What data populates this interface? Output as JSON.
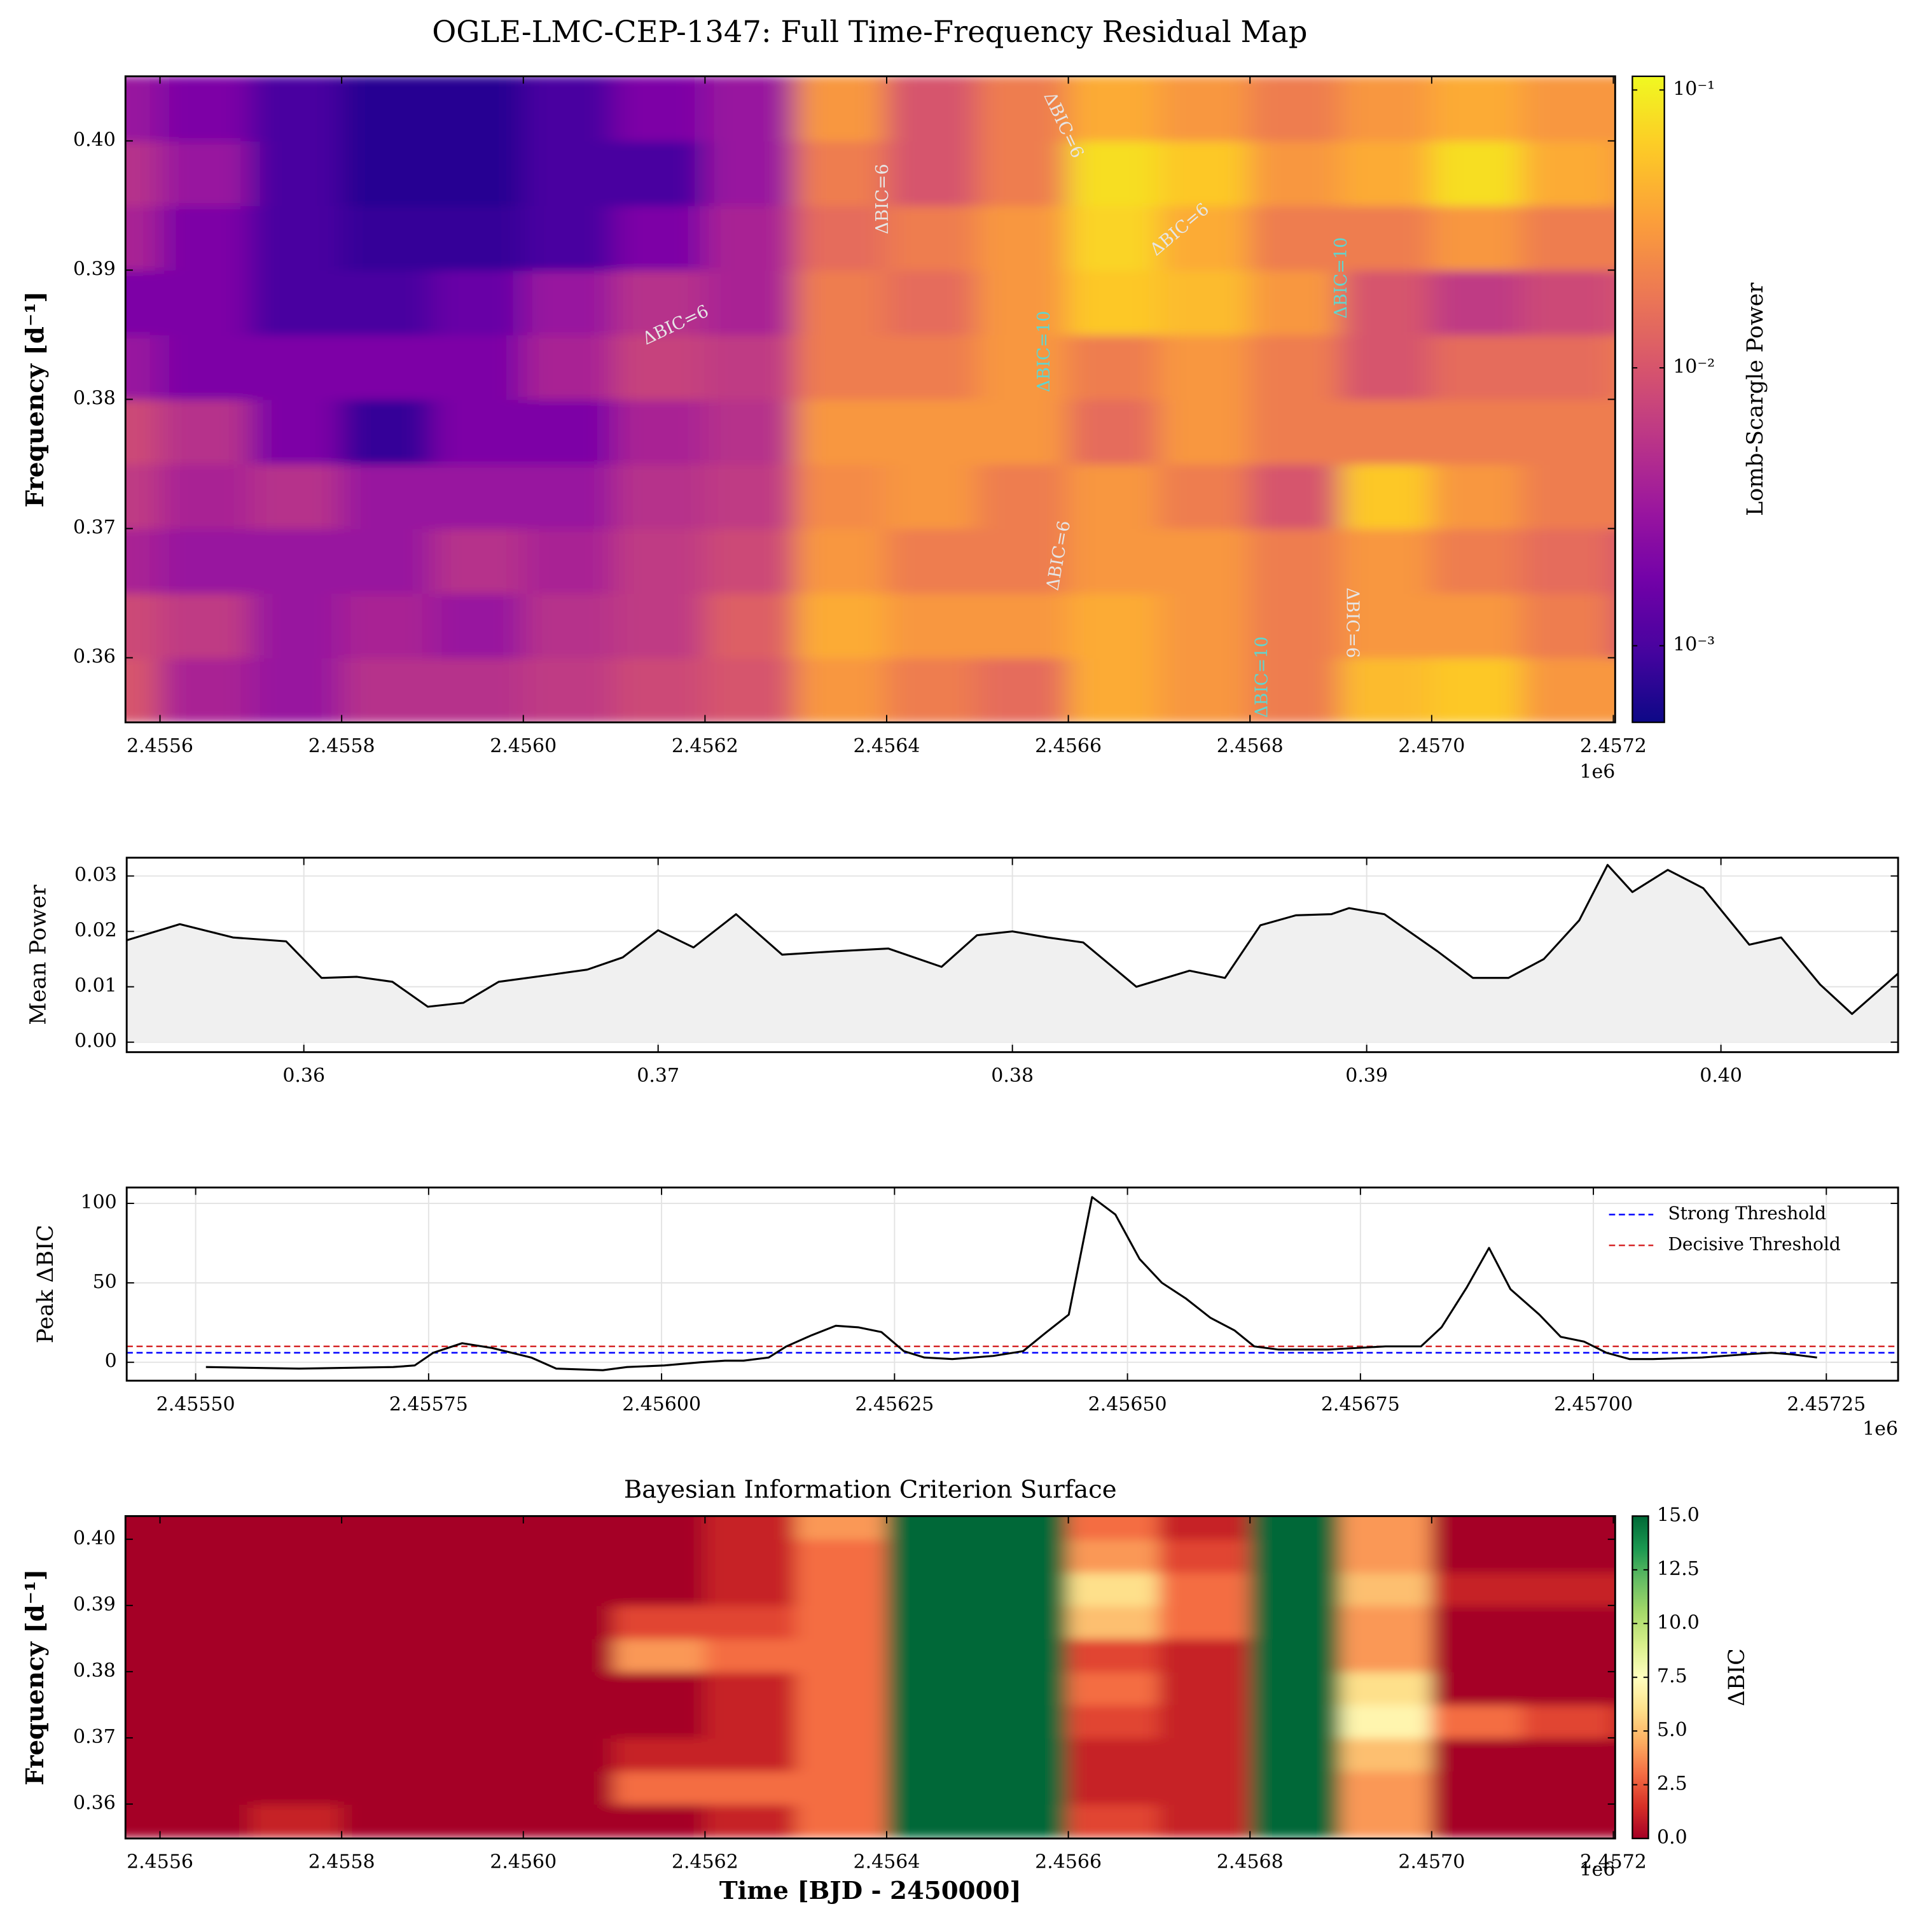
{
  "title": "OGLE-LMC-CEP-1347: Full Time-Frequency Residual Map",
  "chart_data": [
    {
      "type": "heatmap",
      "ylabel": "Frequency [d⁻¹]",
      "x_offset_label": "1e6",
      "x": [
        2455550,
        2455650,
        2455750,
        2455850,
        2455950,
        2456050,
        2456150,
        2456250,
        2456350,
        2456450,
        2456550,
        2456650,
        2456750,
        2456850,
        2456950,
        2457050,
        2457150,
        2457250
      ],
      "y": [
        0.3575,
        0.3625,
        0.3675,
        0.3725,
        0.3775,
        0.3825,
        0.3875,
        0.3925,
        0.3975,
        0.4025
      ],
      "z": [
        [
          0.01,
          0.008,
          0.004,
          0.006,
          0.008,
          0.003,
          0.002,
          0.004,
          0.005,
          0.003
        ],
        [
          0.004,
          0.006,
          0.003,
          0.004,
          0.005,
          0.002,
          0.002,
          0.002,
          0.003,
          0.002
        ],
        [
          0.003,
          0.003,
          0.003,
          0.005,
          0.002,
          0.002,
          0.001,
          0.001,
          0.001,
          0.001
        ],
        [
          0.005,
          0.004,
          0.003,
          0.003,
          0.0008,
          0.002,
          0.001,
          0.0008,
          0.0007,
          0.0007
        ],
        [
          0.005,
          0.003,
          0.005,
          0.003,
          0.002,
          0.002,
          0.0015,
          0.0008,
          0.0007,
          0.0007
        ],
        [
          0.006,
          0.005,
          0.004,
          0.003,
          0.002,
          0.004,
          0.003,
          0.001,
          0.001,
          0.001
        ],
        [
          0.008,
          0.006,
          0.006,
          0.005,
          0.004,
          0.007,
          0.005,
          0.002,
          0.001,
          0.002
        ],
        [
          0.01,
          0.012,
          0.008,
          0.006,
          0.005,
          0.006,
          0.004,
          0.004,
          0.003,
          0.003
        ],
        [
          0.03,
          0.04,
          0.03,
          0.025,
          0.03,
          0.02,
          0.02,
          0.015,
          0.02,
          0.03
        ],
        [
          0.02,
          0.03,
          0.02,
          0.03,
          0.03,
          0.02,
          0.015,
          0.02,
          0.01,
          0.01
        ],
        [
          0.015,
          0.03,
          0.02,
          0.02,
          0.03,
          0.03,
          0.03,
          0.03,
          0.02,
          0.02
        ],
        [
          0.04,
          0.04,
          0.03,
          0.03,
          0.015,
          0.02,
          0.06,
          0.07,
          0.08,
          0.04
        ],
        [
          0.03,
          0.03,
          0.03,
          0.02,
          0.03,
          0.03,
          0.05,
          0.04,
          0.06,
          0.03
        ],
        [
          0.02,
          0.02,
          0.02,
          0.01,
          0.02,
          0.02,
          0.03,
          0.02,
          0.03,
          0.02
        ],
        [
          0.05,
          0.03,
          0.03,
          0.06,
          0.02,
          0.01,
          0.01,
          0.02,
          0.04,
          0.03
        ],
        [
          0.06,
          0.03,
          0.02,
          0.03,
          0.02,
          0.015,
          0.006,
          0.03,
          0.08,
          0.04
        ],
        [
          0.03,
          0.02,
          0.015,
          0.02,
          0.02,
          0.015,
          0.008,
          0.02,
          0.04,
          0.03
        ],
        [
          0.03,
          0.01,
          0.01,
          0.02,
          0.02,
          0.02,
          0.01,
          0.02,
          0.03,
          0.03
        ]
      ],
      "xlim": [
        2455562,
        2457202
      ],
      "ylim": [
        0.355,
        0.405
      ],
      "xticks": [
        {
          "value": 2455600,
          "label": "2.4556"
        },
        {
          "value": 2455800,
          "label": "2.4558"
        },
        {
          "value": 2456000,
          "label": "2.4560"
        },
        {
          "value": 2456200,
          "label": "2.4562"
        },
        {
          "value": 2456400,
          "label": "2.4564"
        },
        {
          "value": 2456600,
          "label": "2.4566"
        },
        {
          "value": 2456800,
          "label": "2.4568"
        },
        {
          "value": 2457000,
          "label": "2.4570"
        },
        {
          "value": 2457200,
          "label": "2.4572"
        }
      ],
      "yticks": [
        0.36,
        0.37,
        0.38,
        0.39,
        {
          "value": 0.4,
          "label": "0.40"
        }
      ],
      "colorbar": {
        "label": "Lomb-Scargle Power",
        "colormap": "plasma",
        "log": true,
        "lim": [
          0.00053,
          0.112
        ],
        "ticks": [
          {
            "value": 0.001,
            "label": "10⁻³"
          },
          {
            "value": 0.01,
            "label": "10⁻²"
          },
          {
            "value": 0.1,
            "label": "10⁻¹"
          }
        ]
      },
      "annotations": [
        {
          "text": "ΔBIC=6",
          "x": 2456168,
          "y": 0.3857,
          "color": "#e6e6e6"
        },
        {
          "text": "ΔBIC=6",
          "x": 2456396,
          "y": 0.3955,
          "color": "#e6e6e6"
        },
        {
          "text": "ΔBIC=6",
          "x": 2456594,
          "y": 0.4012,
          "color": "#e6e6e6"
        },
        {
          "text": "ΔBIC=6",
          "x": 2456723,
          "y": 0.3931,
          "color": "#e6e6e6"
        },
        {
          "text": "ΔBIC=10",
          "x": 2456574,
          "y": 0.3837,
          "color": "#5fd6d0"
        },
        {
          "text": "ΔBIC=6",
          "x": 2456590,
          "y": 0.3679,
          "color": "#e6e6e6"
        },
        {
          "text": "ΔBIC=10",
          "x": 2456901,
          "y": 0.3894,
          "color": "#5fd6d0"
        },
        {
          "text": "ΔBIC=6",
          "x": 2456912,
          "y": 0.3627,
          "color": "#e6e6e6"
        },
        {
          "text": "ΔBIC=10",
          "x": 2456814,
          "y": 0.3585,
          "color": "#5fd6d0"
        }
      ]
    },
    {
      "type": "line",
      "ylabel": "Mean Power",
      "color": "#000000",
      "fill": true,
      "fill_color": "#f0f0f0",
      "grid": true,
      "x": [
        0.355,
        0.3565,
        0.358,
        0.3595,
        0.3605,
        0.3615,
        0.3625,
        0.3635,
        0.3645,
        0.3655,
        0.367,
        0.368,
        0.369,
        0.37,
        0.371,
        0.3722,
        0.3735,
        0.375,
        0.3765,
        0.378,
        0.379,
        0.38,
        0.381,
        0.382,
        0.3835,
        0.385,
        0.386,
        0.387,
        0.388,
        0.389,
        0.3895,
        0.3905,
        0.392,
        0.393,
        0.394,
        0.395,
        0.396,
        0.3968,
        0.3975,
        0.3985,
        0.3995,
        0.4008,
        0.4017,
        0.4028,
        0.4037,
        0.405
      ],
      "values": [
        0.0184,
        0.0213,
        0.0189,
        0.0182,
        0.0116,
        0.0118,
        0.0109,
        0.0064,
        0.0071,
        0.0109,
        0.0122,
        0.0131,
        0.0153,
        0.0202,
        0.0171,
        0.0231,
        0.0158,
        0.0164,
        0.0169,
        0.0136,
        0.0193,
        0.02,
        0.0189,
        0.018,
        0.01,
        0.0129,
        0.0116,
        0.0211,
        0.0229,
        0.0231,
        0.0242,
        0.0231,
        0.0164,
        0.0116,
        0.0116,
        0.015,
        0.022,
        0.032,
        0.0271,
        0.0311,
        0.0278,
        0.0176,
        0.0189,
        0.0104,
        0.0051,
        0.0124
      ],
      "xlim": [
        0.355,
        0.405
      ],
      "ylim": [
        -0.0018,
        0.0333
      ],
      "xticks": [
        0.36,
        0.37,
        0.38,
        0.39,
        {
          "value": 0.4,
          "label": "0.40"
        }
      ],
      "yticks": [
        {
          "value": 0,
          "label": "0.00"
        },
        0.01,
        0.02,
        0.03
      ]
    },
    {
      "type": "line",
      "ylabel": "Peak ΔBIC",
      "x_offset_label": "1e6",
      "color": "#000000",
      "grid": true,
      "legend": "upper right",
      "x": [
        2455511,
        2455611,
        2455712,
        2455735,
        2455755,
        2455786,
        2455818,
        2455860,
        2455887,
        2455937,
        2455963,
        2456003,
        2456042,
        2456068,
        2456088,
        2456115,
        2456134,
        2456161,
        2456187,
        2456211,
        2456236,
        2456260,
        2456282,
        2456312,
        2456356,
        2456388,
        2456411,
        2456437,
        2456462,
        2456487,
        2456513,
        2456537,
        2456563,
        2456589,
        2456615,
        2456636,
        2456662,
        2456715,
        2456777,
        2456815,
        2456837,
        2456864,
        2456888,
        2456911,
        2456942,
        2456965,
        2456990,
        2457014,
        2457039,
        2457064,
        2457117,
        2457163,
        2457191,
        2457213,
        2457240
      ],
      "values": [
        -3,
        -4,
        -3,
        -2,
        6,
        12,
        9,
        3,
        -4,
        -5,
        -3,
        -2,
        0,
        1,
        1,
        3,
        10,
        17,
        23,
        22,
        19,
        7,
        3,
        2,
        4,
        7,
        18,
        30,
        104,
        93,
        65,
        50,
        40,
        28,
        20,
        10,
        8,
        8,
        10,
        10,
        22,
        47,
        72,
        46,
        30,
        16,
        13,
        6,
        2,
        2,
        3,
        5,
        6,
        5,
        3
      ],
      "hlines": [
        {
          "name": "Strong Threshold",
          "value": 6,
          "color": "#0000ff"
        },
        {
          "name": "Decisive Threshold",
          "value": 10,
          "color": "#d62728"
        }
      ],
      "xlim": [
        2455426,
        2457327
      ],
      "ylim": [
        -11.6,
        110
      ],
      "xticks": [
        {
          "value": 2455500,
          "label": "2.45550"
        },
        {
          "value": 2455750,
          "label": "2.45575"
        },
        {
          "value": 2456000,
          "label": "2.45600"
        },
        {
          "value": 2456250,
          "label": "2.45625"
        },
        {
          "value": 2456500,
          "label": "2.45650"
        },
        {
          "value": 2456750,
          "label": "2.45675"
        },
        {
          "value": 2457000,
          "label": "2.45700"
        },
        {
          "value": 2457250,
          "label": "2.45725"
        }
      ],
      "yticks": [
        0,
        50,
        100
      ]
    },
    {
      "type": "heatmap",
      "title": "Bayesian Information Criterion Surface",
      "xlabel": "Time [BJD - 2450000]",
      "ylabel": "Frequency [d⁻¹]",
      "x_offset_label": "1e6",
      "x": [
        2455550,
        2455650,
        2455750,
        2455850,
        2455950,
        2456050,
        2456150,
        2456250,
        2456350,
        2456450,
        2456550,
        2456650,
        2456750,
        2456850,
        2456950,
        2457050,
        2457150,
        2457250
      ],
      "y": [
        0.3575,
        0.3625,
        0.3675,
        0.3725,
        0.3775,
        0.3825,
        0.3875,
        0.3925,
        0.3975,
        0.4025
      ],
      "z": [
        [
          0,
          0,
          0,
          0,
          0,
          0,
          0,
          0,
          0,
          0
        ],
        [
          0,
          0,
          0,
          0,
          0,
          0,
          0,
          0,
          0,
          0
        ],
        [
          1,
          0,
          0,
          0,
          0,
          0,
          0,
          0,
          0,
          0
        ],
        [
          0,
          0,
          0,
          0,
          0,
          0,
          0,
          0,
          0,
          0
        ],
        [
          0,
          0,
          0,
          0,
          0,
          0,
          0,
          0,
          0,
          0
        ],
        [
          0,
          0,
          0,
          0,
          0,
          0,
          0,
          0,
          0,
          0
        ],
        [
          0,
          3,
          1,
          0,
          0,
          4,
          2,
          0,
          0,
          0
        ],
        [
          1,
          3,
          1,
          1,
          1,
          3,
          2,
          1,
          1,
          1
        ],
        [
          3,
          3,
          3,
          3,
          3,
          3,
          3,
          3,
          3,
          4
        ],
        [
          15,
          15,
          15,
          15,
          15,
          15,
          15,
          15,
          15,
          15
        ],
        [
          15,
          15,
          15,
          15,
          15,
          15,
          15,
          15,
          15,
          15
        ],
        [
          2,
          1,
          1,
          2,
          3,
          2,
          5,
          6,
          4,
          3
        ],
        [
          1,
          1,
          1,
          1,
          1,
          1,
          3,
          3,
          2,
          1
        ],
        [
          15,
          15,
          15,
          15,
          15,
          15,
          15,
          15,
          15,
          15
        ],
        [
          4,
          4,
          5,
          7,
          6,
          4,
          4,
          5,
          4,
          4
        ],
        [
          0,
          0,
          0,
          3,
          0,
          0,
          0,
          1,
          0,
          0
        ],
        [
          0,
          0,
          0,
          2,
          0,
          0,
          0,
          1,
          0,
          0
        ],
        [
          0,
          0,
          0,
          1,
          0,
          0,
          0,
          1,
          0,
          0
        ]
      ],
      "xlim": [
        2455562,
        2457202
      ],
      "ylim": [
        0.3548,
        0.4035
      ],
      "xticks": [
        {
          "value": 2455600,
          "label": "2.4556"
        },
        {
          "value": 2455800,
          "label": "2.4558"
        },
        {
          "value": 2456000,
          "label": "2.4560"
        },
        {
          "value": 2456200,
          "label": "2.4562"
        },
        {
          "value": 2456400,
          "label": "2.4564"
        },
        {
          "value": 2456600,
          "label": "2.4566"
        },
        {
          "value": 2456800,
          "label": "2.4568"
        },
        {
          "value": 2457000,
          "label": "2.4570"
        },
        {
          "value": 2457200,
          "label": "2.4572"
        }
      ],
      "yticks": [
        0.36,
        0.37,
        0.38,
        0.39,
        {
          "value": 0.4,
          "label": "0.40"
        }
      ],
      "colorbar": {
        "label": "ΔBIC",
        "colormap": "RdYlGn",
        "log": false,
        "lim": [
          0,
          15
        ],
        "ticks": [
          {
            "value": 0,
            "label": "0.0"
          },
          2.5,
          {
            "value": 5,
            "label": "5.0"
          },
          7.5,
          {
            "value": 10,
            "label": "10.0"
          },
          12.5,
          {
            "value": 15,
            "label": "15.0"
          }
        ]
      }
    }
  ]
}
